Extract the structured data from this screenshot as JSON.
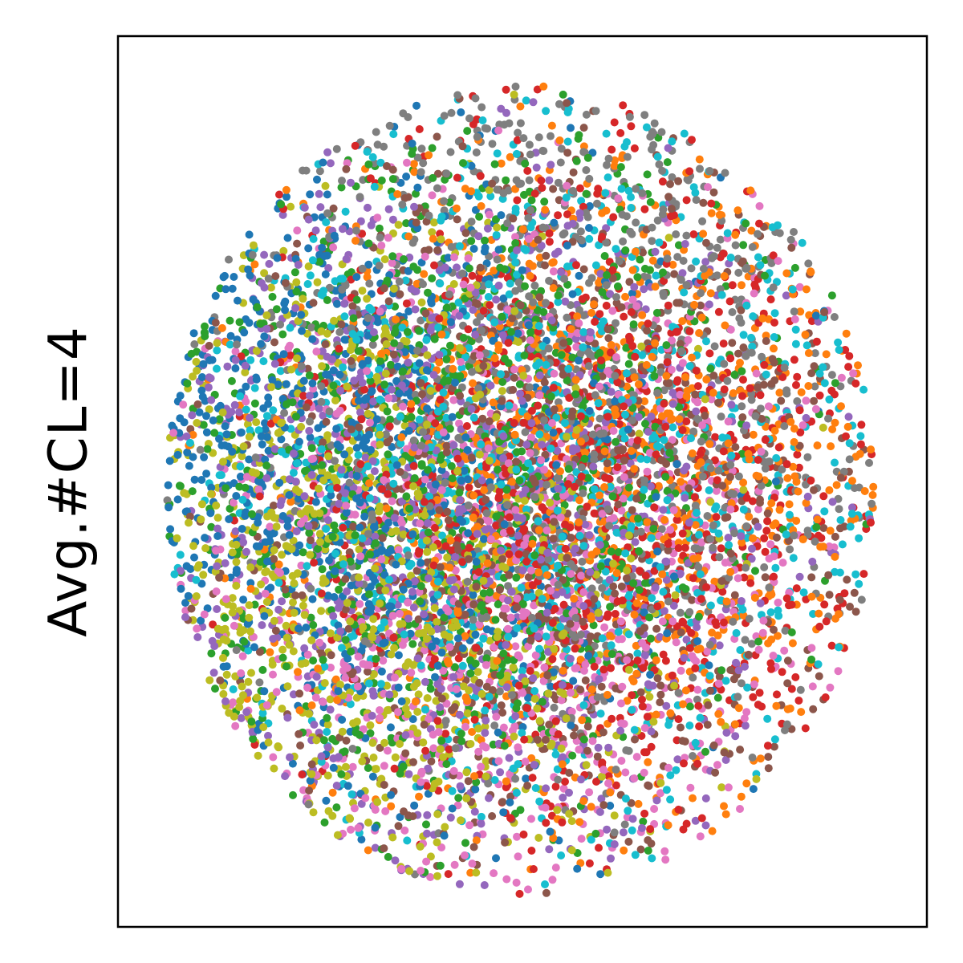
{
  "chart_data": {
    "type": "scatter",
    "title": "",
    "xlabel": "",
    "ylabel": "Avg.#CL=4",
    "xlim": [
      -1.0,
      1.0
    ],
    "ylim": [
      -1.0,
      1.0
    ],
    "xticks": [],
    "yticks": [],
    "grid": false,
    "legend": "none",
    "marker_size": "small",
    "point_count_per_series": 900,
    "series": [
      {
        "color": "#1f77b4",
        "center": [
          -0.5,
          0.05
        ],
        "spread": 0.42
      },
      {
        "color": "#ff7f0e",
        "center": [
          0.25,
          0.05
        ],
        "spread": 0.45
      },
      {
        "color": "#2ca02c",
        "center": [
          -0.2,
          0.05
        ],
        "spread": 0.45
      },
      {
        "color": "#d62728",
        "center": [
          0.25,
          0.0
        ],
        "spread": 0.45
      },
      {
        "color": "#9467bd",
        "center": [
          -0.2,
          -0.05
        ],
        "spread": 0.48
      },
      {
        "color": "#8c564b",
        "center": [
          0.05,
          -0.05
        ],
        "spread": 0.48
      },
      {
        "color": "#e377c2",
        "center": [
          -0.05,
          -0.25
        ],
        "spread": 0.45
      },
      {
        "color": "#7f7f7f",
        "center": [
          0.15,
          0.35
        ],
        "spread": 0.48
      },
      {
        "color": "#bcbd22",
        "center": [
          -0.45,
          -0.2
        ],
        "spread": 0.4
      },
      {
        "color": "#17becf",
        "center": [
          0.05,
          0.1
        ],
        "spread": 0.48
      }
    ]
  }
}
